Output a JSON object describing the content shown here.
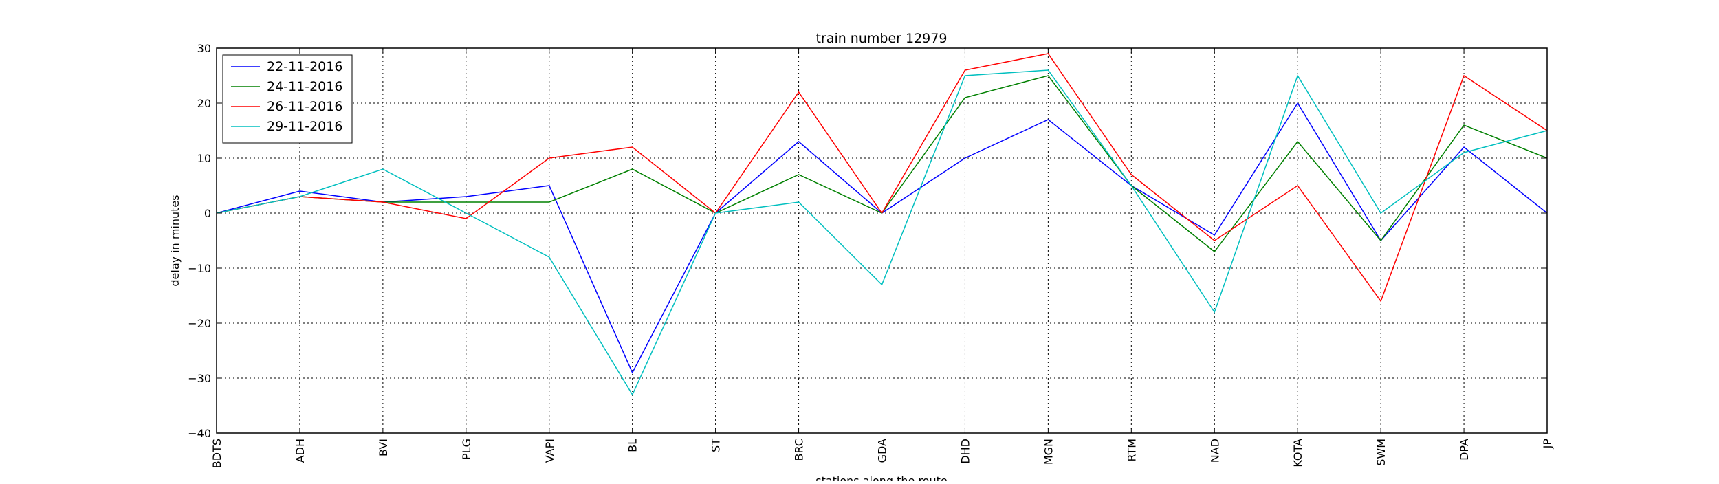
{
  "chart_data": {
    "type": "line",
    "title": "train number 12979",
    "xlabel": "stations along the route",
    "ylabel": "delay in minutes",
    "ylim": [
      -40,
      30
    ],
    "yticks": [
      -40,
      -30,
      -20,
      -10,
      0,
      10,
      20,
      30
    ],
    "categories": [
      "BDTS",
      "ADH",
      "BVI",
      "PLG",
      "VAPI",
      "BL",
      "ST",
      "BRC",
      "GDA",
      "DHD",
      "MGN",
      "RTM",
      "NAD",
      "KOTA",
      "SWM",
      "DPA",
      "JP"
    ],
    "grid": true,
    "legend_position": "top-left",
    "series": [
      {
        "name": "22-11-2016",
        "color": "#0000ff",
        "values": [
          0,
          4,
          2,
          3,
          5,
          -29,
          0,
          13,
          0,
          10,
          17,
          5,
          -4,
          20,
          -5,
          12,
          0
        ]
      },
      {
        "name": "24-11-2016",
        "color": "#008000",
        "values": [
          0,
          3,
          2,
          2,
          2,
          8,
          0,
          7,
          0,
          21,
          25,
          5,
          -7,
          13,
          -5,
          16,
          10
        ]
      },
      {
        "name": "26-11-2016",
        "color": "#ff0000",
        "values": [
          0,
          3,
          2,
          -1,
          10,
          12,
          0,
          22,
          0,
          26,
          29,
          7,
          -5,
          5,
          -16,
          25,
          15
        ]
      },
      {
        "name": "29-11-2016",
        "color": "#00bfbf",
        "values": [
          0,
          3,
          8,
          0,
          -8,
          -33,
          0,
          2,
          -13,
          25,
          26,
          5,
          -18,
          25,
          0,
          11,
          15
        ]
      }
    ]
  }
}
